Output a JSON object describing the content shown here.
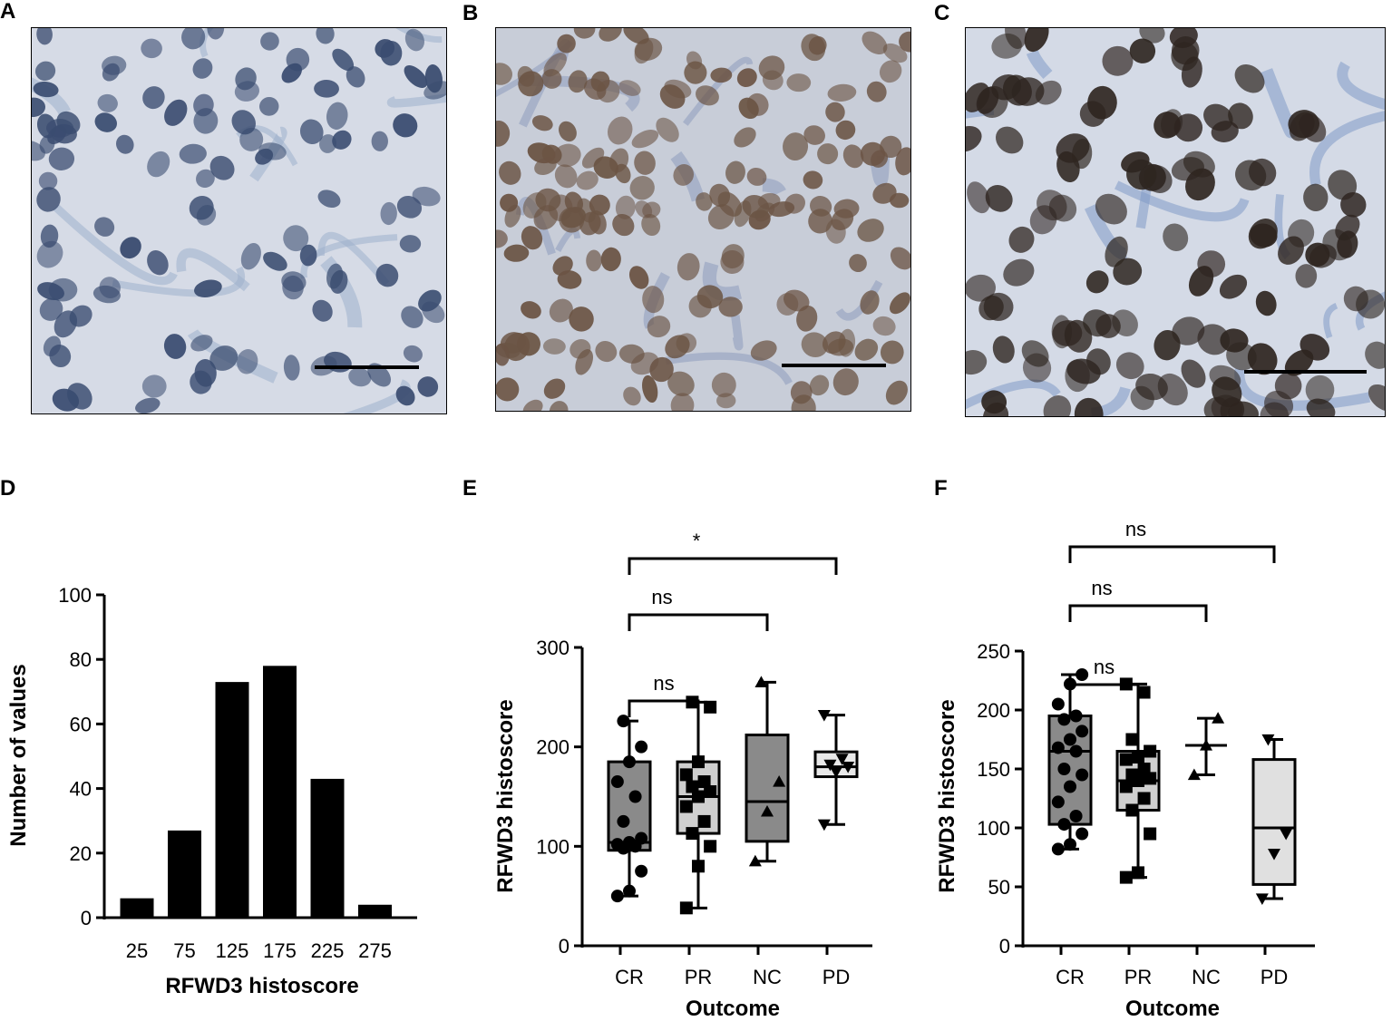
{
  "panels": {
    "A": {
      "letter": "A"
    },
    "B": {
      "letter": "B"
    },
    "C": {
      "letter": "C"
    },
    "D": {
      "letter": "D"
    },
    "E": {
      "letter": "E"
    },
    "F": {
      "letter": "F"
    }
  },
  "micrographs": [
    {
      "panel": "A",
      "stain_level": "negative",
      "nucleus_color": "#3a4c70",
      "bg_color": "#d6dbe6",
      "stroma_color": "#9fb0cc"
    },
    {
      "panel": "B",
      "stain_level": "moderate",
      "nucleus_color": "#6b5444",
      "bg_color": "#c8cdd8",
      "stroma_color": "#8e9cbd"
    },
    {
      "panel": "C",
      "stain_level": "strong",
      "nucleus_color": "#2e2520",
      "bg_color": "#d4dae6",
      "stroma_color": "#7f9bc6"
    }
  ],
  "chart_data": [
    {
      "panel": "D",
      "type": "bar",
      "categories": [
        "25",
        "75",
        "125",
        "175",
        "225",
        "275"
      ],
      "values": [
        6,
        27,
        73,
        78,
        43,
        4
      ],
      "xlabel": "RFWD3 histoscore",
      "ylabel": "Number of values",
      "ylim": [
        0,
        100
      ],
      "yticks": [
        "0",
        "20",
        "40",
        "60",
        "80",
        "100"
      ]
    },
    {
      "panel": "E",
      "type": "box",
      "xlabel": "Outcome",
      "ylabel": "RFWD3 histoscore",
      "ylim": [
        0,
        300
      ],
      "yticks": [
        "0",
        "100",
        "200",
        "300"
      ],
      "categories": [
        "CR",
        "PR",
        "NC",
        "PD"
      ],
      "groups": [
        {
          "name": "CR",
          "fill": "#8a8a8a",
          "marker": "circle",
          "min": 50,
          "q1": 96,
          "median": 104,
          "q3": 185,
          "max": 226,
          "points": [
            50,
            55,
            75,
            98,
            100,
            102,
            104,
            108,
            125,
            150,
            165,
            185,
            200,
            226
          ]
        },
        {
          "name": "PR",
          "fill": "#cfcfcf",
          "marker": "square",
          "min": 38,
          "q1": 113,
          "median": 150,
          "q3": 185,
          "max": 245,
          "points": [
            38,
            80,
            100,
            113,
            125,
            140,
            150,
            155,
            160,
            165,
            172,
            185,
            240,
            245
          ]
        },
        {
          "name": "NC",
          "fill": "#8a8a8a",
          "marker": "triangle",
          "min": 85,
          "q1": 105,
          "median": 145,
          "q3": 212,
          "max": 265,
          "points": [
            85,
            135,
            165,
            265
          ]
        },
        {
          "name": "PD",
          "fill": "#e8e8e8",
          "marker": "triangle-down",
          "min": 122,
          "q1": 170,
          "median": 180,
          "q3": 195,
          "max": 232,
          "points": [
            122,
            175,
            180,
            182,
            188,
            232
          ]
        }
      ],
      "comparisons": [
        {
          "from": "CR",
          "to": "PR",
          "label": "ns",
          "y": 270
        },
        {
          "from": "CR",
          "to": "NC",
          "label": "ns",
          "y": 365
        },
        {
          "from": "CR",
          "to": "PD",
          "label": "*",
          "y": 427
        }
      ]
    },
    {
      "panel": "F",
      "type": "box",
      "xlabel": "Outcome",
      "ylabel": "RFWD3 histoscore",
      "ylim": [
        0,
        250
      ],
      "yticks": [
        "0",
        "50",
        "100",
        "150",
        "200",
        "250"
      ],
      "categories": [
        "CR",
        "PR",
        "NC",
        "PD"
      ],
      "groups": [
        {
          "name": "CR",
          "fill": "#8a8a8a",
          "marker": "circle",
          "min": 82,
          "q1": 103,
          "median": 165,
          "q3": 195,
          "max": 230,
          "points": [
            82,
            86,
            95,
            103,
            110,
            122,
            135,
            145,
            150,
            165,
            168,
            175,
            182,
            192,
            195,
            205,
            222,
            230
          ]
        },
        {
          "name": "PR",
          "fill": "#cfcfcf",
          "marker": "square",
          "min": 58,
          "q1": 115,
          "median": 140,
          "q3": 165,
          "max": 222,
          "points": [
            58,
            62,
            95,
            115,
            125,
            135,
            140,
            142,
            145,
            150,
            158,
            160,
            165,
            175,
            215,
            222
          ]
        },
        {
          "name": "NC",
          "fill": "#ffffff",
          "marker": "triangle",
          "min": 145,
          "q1": 170,
          "median": 170,
          "q3": 170,
          "max": 193,
          "points": [
            145,
            170,
            193
          ]
        },
        {
          "name": "PD",
          "fill": "#e0e0e0",
          "marker": "triangle-down",
          "min": 40,
          "q1": 52,
          "median": 100,
          "q3": 158,
          "max": 175,
          "points": [
            40,
            78,
            95,
            175
          ]
        }
      ],
      "comparisons": [
        {
          "from": "CR",
          "to": "PR",
          "label": "ns",
          "y": 288
        },
        {
          "from": "CR",
          "to": "NC",
          "label": "ns",
          "y": 375
        },
        {
          "from": "CR",
          "to": "PD",
          "label": "ns",
          "y": 440
        }
      ]
    }
  ]
}
